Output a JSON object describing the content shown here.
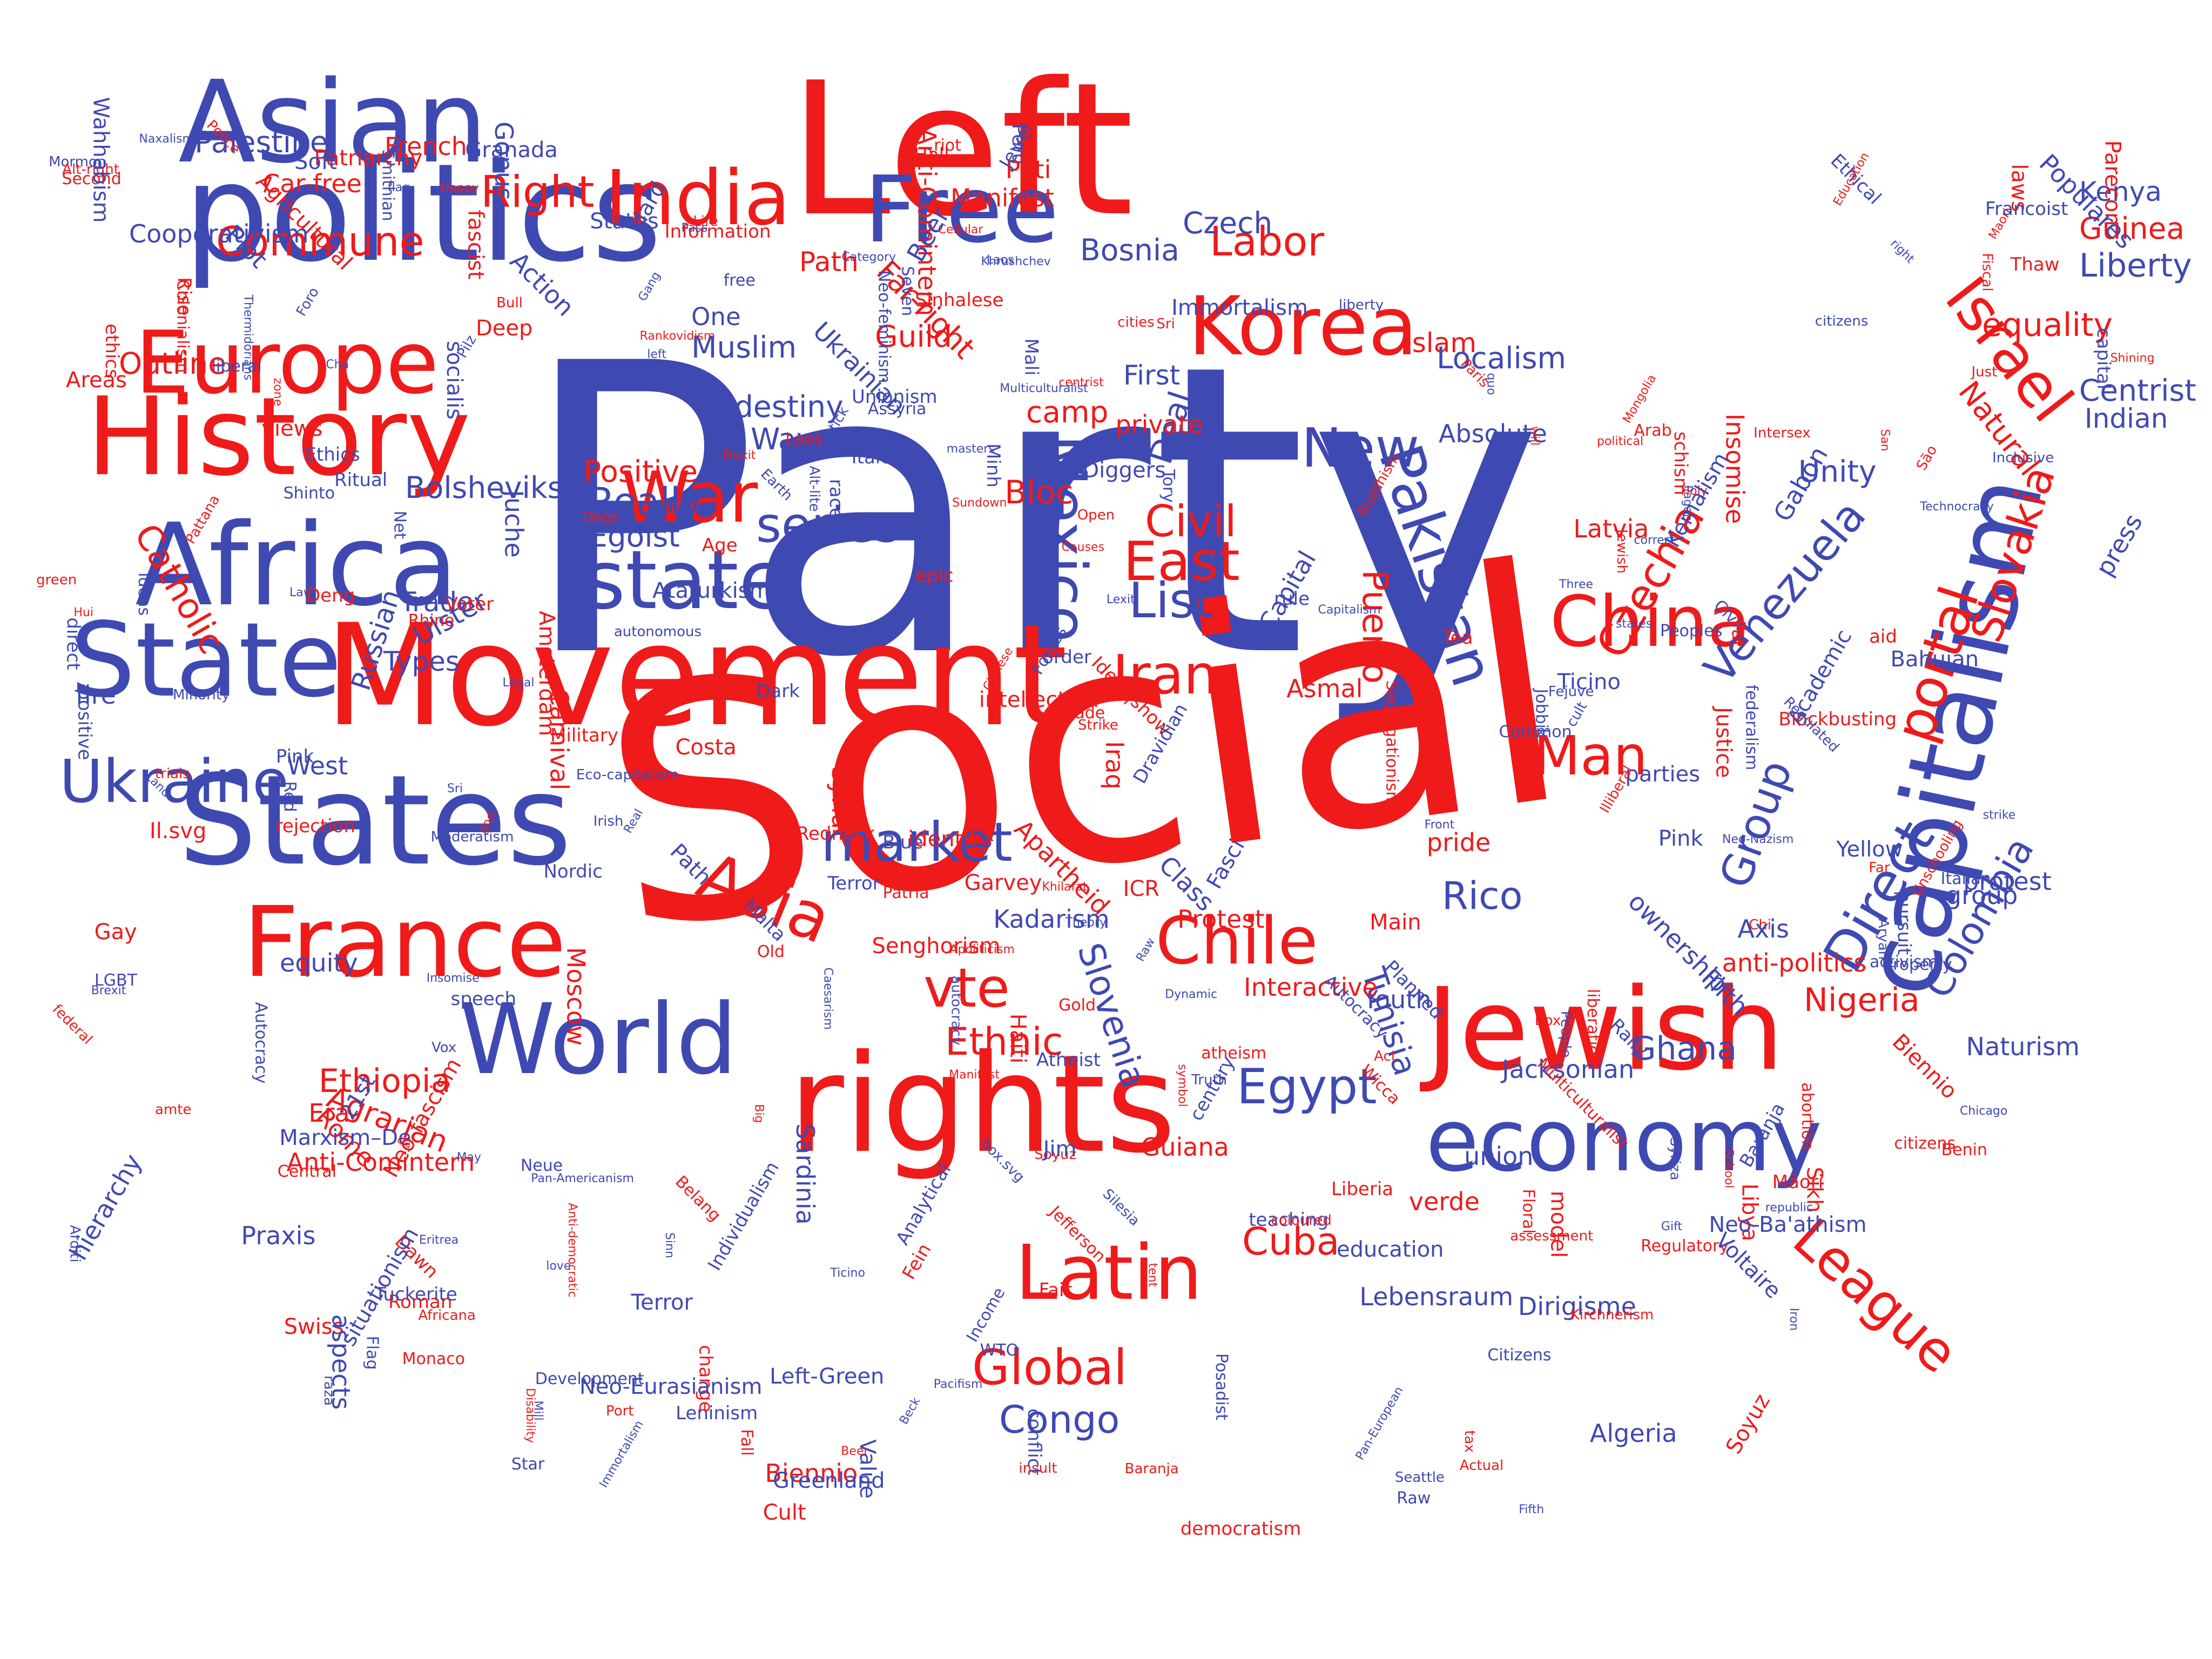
{
  "palette": {
    "blue": "#3f49b2",
    "red": "#ef1a1a"
  },
  "words": [
    "Party",
    "Social",
    "Left",
    "politics",
    "Movement",
    "rights",
    "Asian",
    "Africa",
    "History",
    "Europe",
    "States",
    "State",
    "capitalism",
    "Jewish",
    "France",
    "Korea",
    "India",
    "Free",
    "World",
    "economy",
    "Mexico",
    "China",
    "Pakistan",
    "Israel",
    "War",
    "Latin",
    "state",
    "Asia",
    "Ukraine",
    "Chile",
    "market",
    "Commune",
    "Right",
    "series",
    "East",
    "Iran",
    "Civil",
    "List",
    "Labor",
    "Man",
    "portal",
    "Direct",
    "League",
    "Egypt",
    "Global",
    "Venezuela",
    "Czechia",
    "Slovakia",
    "Colombia",
    "Group",
    "Puerto",
    "Rico",
    "Slovenia",
    "Ethnic",
    "vte",
    "Cuba",
    "Congo",
    "Nigeria",
    "Ghana",
    "Tunisia",
    "Ethiopia",
    "Agrarian",
    "Catholic",
    "Theory",
    "Outline",
    "Property",
    "Diggers",
    "Palestine",
    "Bosnia",
    "Czech",
    "New",
    "Really",
    "Egoist",
    "Positive",
    "Unity",
    "centrist",
    "Centrist",
    "Indian",
    "Kenya",
    "Guinea",
    "Liberty",
    "equality",
    "Natural",
    "Islam",
    "Localism",
    "First",
    "Deal",
    "Bloc",
    "camp",
    "Guild",
    "Far-right",
    "Path",
    "Manifest",
    "Muslim",
    "One",
    "destiny",
    "Way",
    "Bolsheviks",
    "Trade",
    "Ulster",
    "Types",
    "Russian",
    "West",
    "Truth",
    "Minh",
    "Peoples",
    "Development",
    "Analytical",
    "Khrushchev",
    "Seattle",
    "Income",
    "Pan-Americanism",
    "Rally",
    "Laos",
    "direct",
    "activism",
    "Technocracy",
    "Jacksonian",
    "flag",
    "Iron",
    "Real",
    "Sinn",
    "Seven",
    "parties",
    "People",
    "right",
    "LGBT",
    "Italian",
    "pride",
    "identity",
    "democratism",
    "atheism",
    "Iraq",
    "Syria",
    "Paris",
    "Unionism",
    "Leninism",
    "Rhine",
    "liberal",
    "Lexit",
    "Kadarism",
    "Legal",
    "Ethical",
    "Neue",
    "Value",
    "Deep",
    "autonomous",
    "education",
    "Rome",
    "Malta",
    "Māori",
    "Category",
    "WTO",
    "Earth",
    "Cult",
    "Land",
    "Nordic",
    "Front",
    "Peru",
    "Costa",
    "French",
    "ownership",
    "Rica",
    "21st",
    "Law",
    "Class",
    "Thermidorians",
    "free",
    "Apartheid",
    "Illiberal",
    "Segregationism",
    "Strike",
    "May",
    "Minority",
    "Three",
    "Justice",
    "Inclusive",
    "Citizens",
    "Dawn",
    "Chinese",
    "Buddhism",
    "liberation",
    "Patriarchy",
    "Mormon",
    "Alt-right",
    "Shinto",
    "Gay",
    "change",
    "Deng",
    "São",
    "Civic",
    "green",
    "Arab",
    "Chi",
    "Sikh",
    "Red",
    "Alt-lite",
    "Net",
    "quo",
    "rule",
    "Blue",
    "Tory",
    "Act",
    "aid",
    "Benin",
    "Fifth",
    "Status",
    "Fiscal",
    "Swiss",
    "symbol",
    "situationism",
    "liberty",
    "Fasci",
    "Foro",
    "Star",
    "San",
    "Sinhalese",
    "Just",
    "Libya",
    "Latvia",
    "tax",
    "Old",
    "left",
    "model",
    "Yellow",
    "Africana",
    "Praxis",
    "autocracy",
    "trade",
    "laws",
    "Soft",
    "Age",
    "Hard",
    "century",
    "race",
    "Juche",
    "Soyuz",
    "Marxism–De",
    "union",
    "Action",
    "Voter",
    "positive",
    "Atheist",
    "Thaw",
    "Brexit",
    "Central",
    "Cellular",
    "Academic",
    "Carnival",
    "states",
    "Fair",
    "schism",
    "conflict",
    "teaching",
    "Mill",
    "Big",
    "Absolute",
    "group",
    "Education",
    "Areas",
    "Left-Green",
    "Algeria",
    "political",
    "Posadist",
    "Hall",
    "Mali",
    "Gabon",
    "Granada",
    "Axis",
    "Pati",
    "Ritual",
    "Box",
    "Gift",
    "Port",
    "Patria",
    "raza",
    "Roman",
    "Pattana",
    "Hui",
    "Gang",
    "Life",
    "private",
    "Dirigisme",
    "insult",
    "Floral",
    "zone",
    "views",
    "cities",
    "order",
    "strike",
    "Jim",
    "Fein",
    "Haiti",
    "Fat",
    "School",
    "Bull",
    "Liberia",
    "Protest",
    "Vox",
    "Information",
    "Individualism",
    "Capital",
    "Flag",
    "Happy",
    "Lipstick",
    "Planned",
    "capital",
    "Pilz",
    "Chicago",
    "fascist",
    "socialis",
    "Disability",
    "Open",
    "box.svg",
    "Causes",
    "Sundown",
    "Wicca",
    "Common",
    "Second",
    "Fall",
    "epic",
    "Pass",
    "Dogs",
    "cult",
    "rejection",
    "love",
    "intellectual",
    "Ukrainian",
    "Caesarism",
    "Tea",
    "Cha",
    "assessment",
    "Forces",
    "Raw",
    "Dark",
    "coloured",
    "Pink",
    "Irish",
    "equity",
    "Neo-fascism",
    "Terror",
    "Autocracy",
    "Frexit",
    "ethics",
    "tent",
    "Youth",
    "Era",
    "federalism",
    "Parecon",
    "god",
    "rei",
    "federal",
    "Maori",
    "Agricultural",
    "Cooperativism",
    "Redneck",
    "Assyria",
    "Interactive",
    "Anti-Comintern",
    "ICR",
    "Syriza",
    "Monaco",
    "Eritrea",
    "Belang",
    "Holy",
    "Sardinia",
    "Anti-democratic",
    "Dynamic",
    "Eco-capitalism",
    "Pan-European",
    "Jefferson",
    "Regulatory",
    "Plot",
    "Guiana",
    "fire",
    "Pacifism",
    "Actual",
    "citizens",
    "aspects",
    "Bahujan",
    "Pagan",
    "masters",
    "Beer",
    "verde",
    "Silesia",
    "amte",
    "Blockbusting",
    "Police",
    "Immortalism",
    "Insomise",
    "Multiculturalist",
    "Lebensraum",
    "Francoist",
    "Ticino",
    "Military",
    "Biennio",
    "Sri",
    "Ideas",
    "Baranja",
    "will"
  ],
  "extra_words": [
    "Autocracy",
    "Manifest",
    "Path",
    "Terror",
    "Aryan",
    "trials",
    "Smithian",
    "Moderatism",
    "Rise",
    "Ataturkism",
    "Khilafat",
    "Senghorism",
    "Neo-Ba'athism",
    "republic",
    "Il.svg",
    "Jewel",
    "hierarchy",
    "Laos",
    "Naxalism",
    "Ethics",
    "press",
    "riot",
    "del",
    "Anti-Comintern",
    "Fejuve",
    "citizens",
    "Beer",
    "Jobbik",
    "Rankovidism",
    "Amsterdam",
    "correct",
    "Multiculturalist",
    "Soyuz",
    "Insomise",
    "Immortalism",
    "abortion",
    "Mongolia",
    "Far",
    "Ticino",
    "Sri",
    "Biennio",
    "Baranja",
    "Pink",
    "Regulated",
    "Apoliticism",
    "Neo-feminism",
    "anti-politics",
    "Unschooling",
    "Colonialism",
    "Shining",
    "Neo-Eurasianism",
    "Tuckerite",
    "Populares",
    "Car-free",
    "Arditi",
    "Gold",
    "pursuit",
    "Neo-Nazism",
    "Raw",
    "Main",
    "Moscow",
    "Wahhabism",
    "Kirchnerism",
    "Fifth",
    "Beck",
    "Garvey",
    "Intersex",
    "Gonus",
    "Ideas|show",
    "Voltaire",
    "protest",
    "speech",
    "Jewish",
    "Naturism",
    "Dravidian",
    "Greenland",
    "Kemalism",
    "Italexit",
    "Asmal",
    "Capitalism"
  ]
}
